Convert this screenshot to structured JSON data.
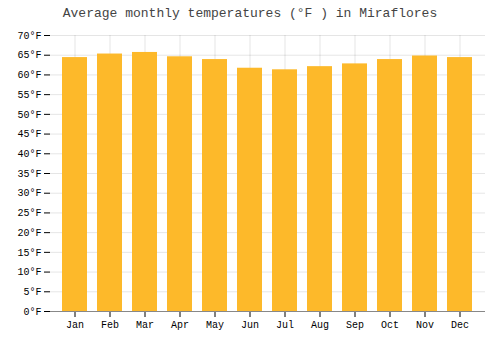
{
  "chart_data": {
    "type": "bar",
    "title": "Average monthly temperatures (°F ) in Miraflores",
    "categories": [
      "Jan",
      "Feb",
      "Mar",
      "Apr",
      "May",
      "Jun",
      "Jul",
      "Aug",
      "Sep",
      "Oct",
      "Nov",
      "Dec"
    ],
    "values": [
      64.4,
      65.3,
      65.7,
      64.6,
      63.9,
      61.7,
      61.3,
      62.1,
      62.8,
      63.9,
      64.8,
      64.4
    ],
    "color": "#FDB92A",
    "ylim": [
      0,
      70
    ],
    "yticks": [
      {
        "value": 0,
        "label": "0°F"
      },
      {
        "value": 5,
        "label": "5°F"
      },
      {
        "value": 10,
        "label": "10°F"
      },
      {
        "value": 15,
        "label": "15°F"
      },
      {
        "value": 20,
        "label": "20°F"
      },
      {
        "value": 25,
        "label": "25°F"
      },
      {
        "value": 30,
        "label": "30°F"
      },
      {
        "value": 35,
        "label": "35°F"
      },
      {
        "value": 40,
        "label": "40°F"
      },
      {
        "value": 45,
        "label": "45°F"
      },
      {
        "value": 50,
        "label": "50°F"
      },
      {
        "value": 55,
        "label": "55°F"
      },
      {
        "value": 60,
        "label": "60°F"
      },
      {
        "value": 65,
        "label": "65°F"
      },
      {
        "value": 70,
        "label": "70°F"
      }
    ],
    "grid": true
  }
}
